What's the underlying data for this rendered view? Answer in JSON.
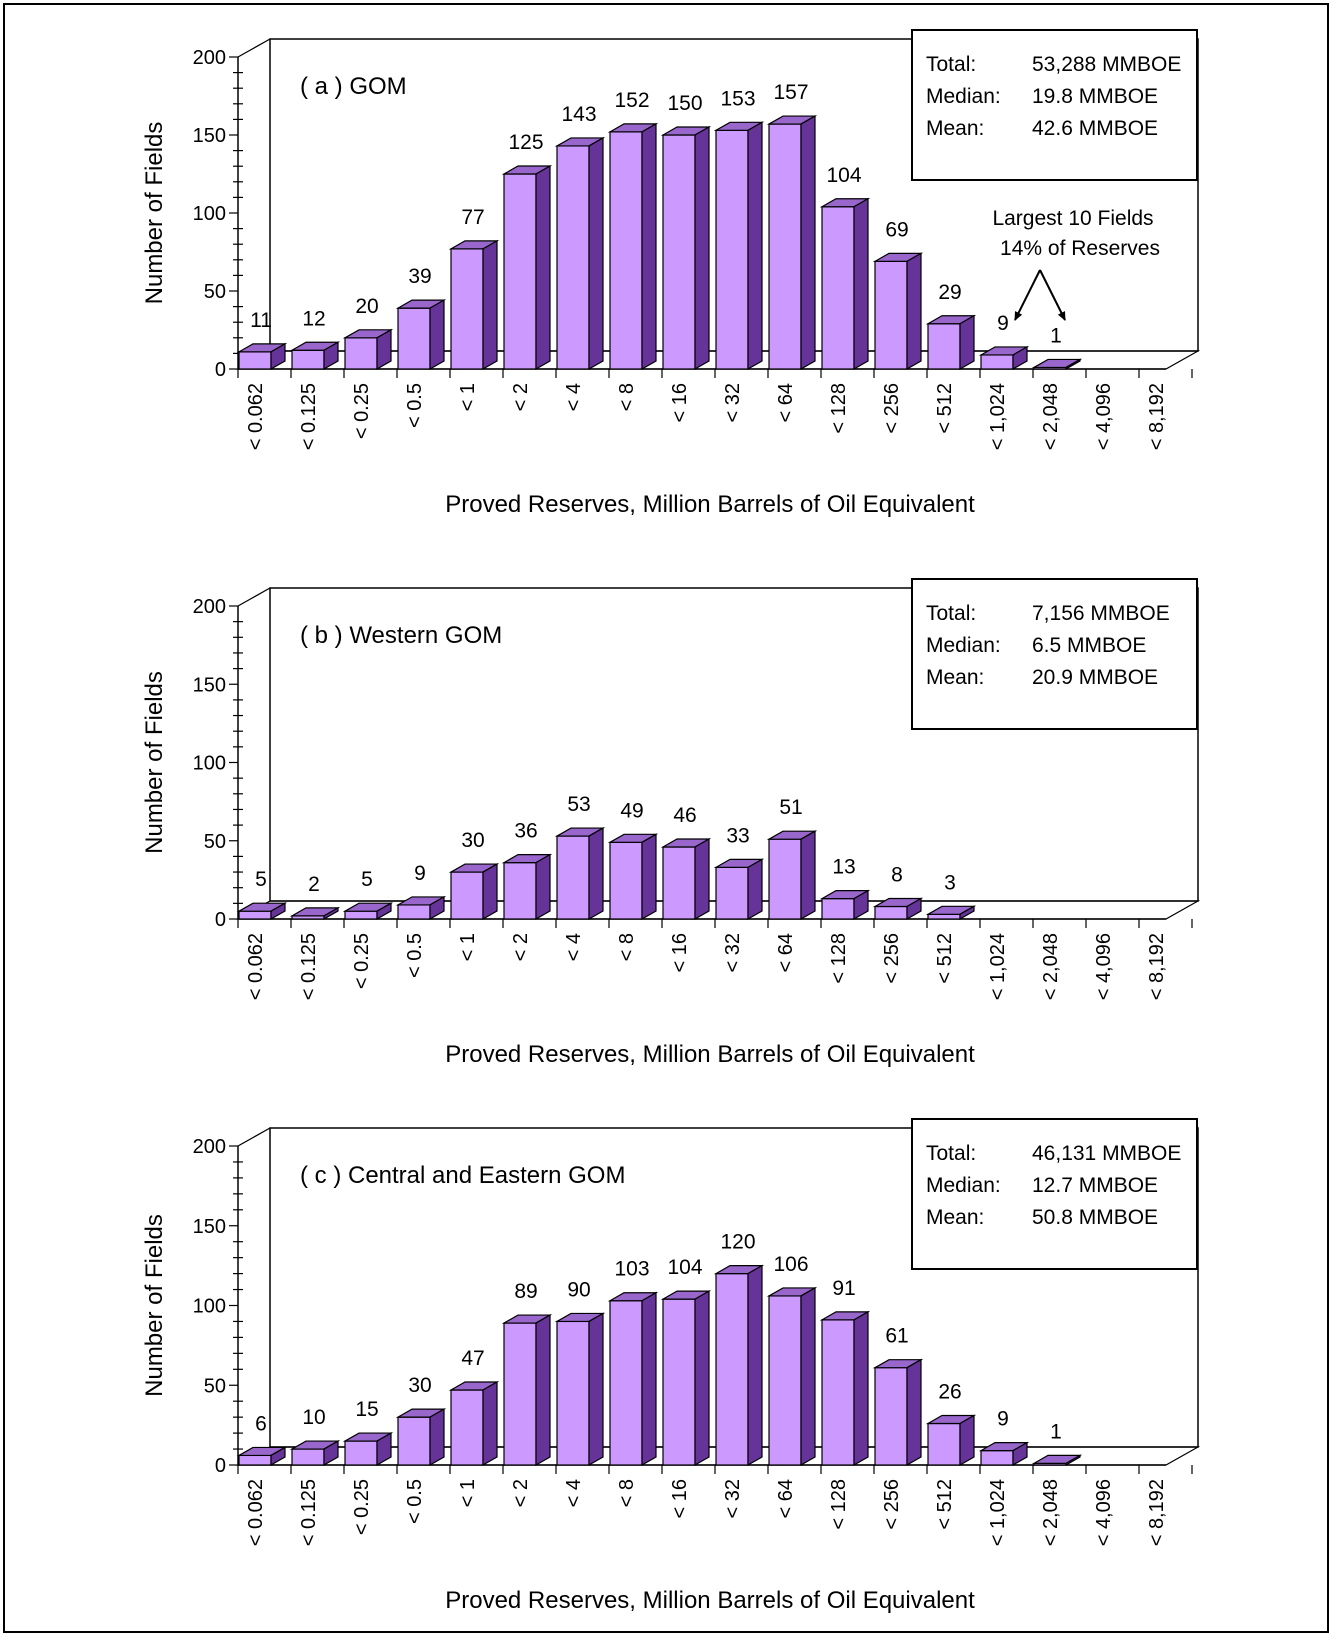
{
  "colors": {
    "bar_front": "#cc99ff",
    "bar_top": "#9966cc",
    "bar_side": "#663399",
    "outline": "#000000",
    "background": "#ffffff"
  },
  "chart_data": [
    {
      "type": "bar",
      "panel": "( a )",
      "title": "GOM",
      "xlabel": "Proved Reserves, Million Barrels of Oil Equivalent",
      "ylabel": "Number of Fields",
      "ylim": [
        0,
        200
      ],
      "yticks": [
        0,
        50,
        100,
        150,
        200
      ],
      "categories": [
        "< 0.062",
        "< 0.125",
        "< 0.25",
        "< 0.5",
        "< 1",
        "< 2",
        "< 4",
        "< 8",
        "< 16",
        "< 32",
        "< 64",
        "< 128",
        "< 256",
        "< 512",
        "< 1,024",
        "< 2,048",
        "< 4,096",
        "< 8,192"
      ],
      "values": [
        11,
        12,
        20,
        39,
        77,
        125,
        143,
        152,
        150,
        153,
        157,
        104,
        69,
        29,
        9,
        1,
        null,
        null
      ],
      "stats": [
        {
          "label": "Total:",
          "value": "53,288 MMBOE"
        },
        {
          "label": "Median:",
          "value": "19.8 MMBOE"
        },
        {
          "label": "Mean:",
          "value": "42.6 MMBOE"
        }
      ],
      "annotation": {
        "line1": "Largest 10 Fields",
        "line2": "14% of Reserves",
        "points_to": [
          "< 1,024",
          "< 2,048"
        ]
      }
    },
    {
      "type": "bar",
      "panel": "( b )",
      "title": "Western GOM",
      "xlabel": "Proved Reserves, Million Barrels of Oil Equivalent",
      "ylabel": "Number of Fields",
      "ylim": [
        0,
        200
      ],
      "yticks": [
        0,
        50,
        100,
        150,
        200
      ],
      "categories": [
        "< 0.062",
        "< 0.125",
        "< 0.25",
        "< 0.5",
        "< 1",
        "< 2",
        "< 4",
        "< 8",
        "< 16",
        "< 32",
        "< 64",
        "< 128",
        "< 256",
        "< 512",
        "< 1,024",
        "< 2,048",
        "< 4,096",
        "< 8,192"
      ],
      "values": [
        5,
        2,
        5,
        9,
        30,
        36,
        53,
        49,
        46,
        33,
        51,
        13,
        8,
        3,
        null,
        null,
        null,
        null
      ],
      "stats": [
        {
          "label": "Total:",
          "value": "7,156 MMBOE"
        },
        {
          "label": "Median:",
          "value": "6.5 MMBOE"
        },
        {
          "label": "Mean:",
          "value": "20.9 MMBOE"
        }
      ]
    },
    {
      "type": "bar",
      "panel": "( c )",
      "title": "Central and Eastern GOM",
      "xlabel": "Proved Reserves, Million Barrels of Oil Equivalent",
      "ylabel": "Number of Fields",
      "ylim": [
        0,
        200
      ],
      "yticks": [
        0,
        50,
        100,
        150,
        200
      ],
      "categories": [
        "< 0.062",
        "< 0.125",
        "< 0.25",
        "< 0.5",
        "< 1",
        "< 2",
        "< 4",
        "< 8",
        "< 16",
        "< 32",
        "< 64",
        "< 128",
        "< 256",
        "< 512",
        "< 1,024",
        "< 2,048",
        "< 4,096",
        "< 8,192"
      ],
      "values": [
        6,
        10,
        15,
        30,
        47,
        89,
        90,
        103,
        104,
        120,
        106,
        91,
        61,
        26,
        9,
        1,
        null,
        null
      ],
      "stats": [
        {
          "label": "Total:",
          "value": "46,131 MMBOE"
        },
        {
          "label": "Median:",
          "value": "12.7 MMBOE"
        },
        {
          "label": "Mean:",
          "value": "50.8 MMBOE"
        }
      ]
    }
  ]
}
